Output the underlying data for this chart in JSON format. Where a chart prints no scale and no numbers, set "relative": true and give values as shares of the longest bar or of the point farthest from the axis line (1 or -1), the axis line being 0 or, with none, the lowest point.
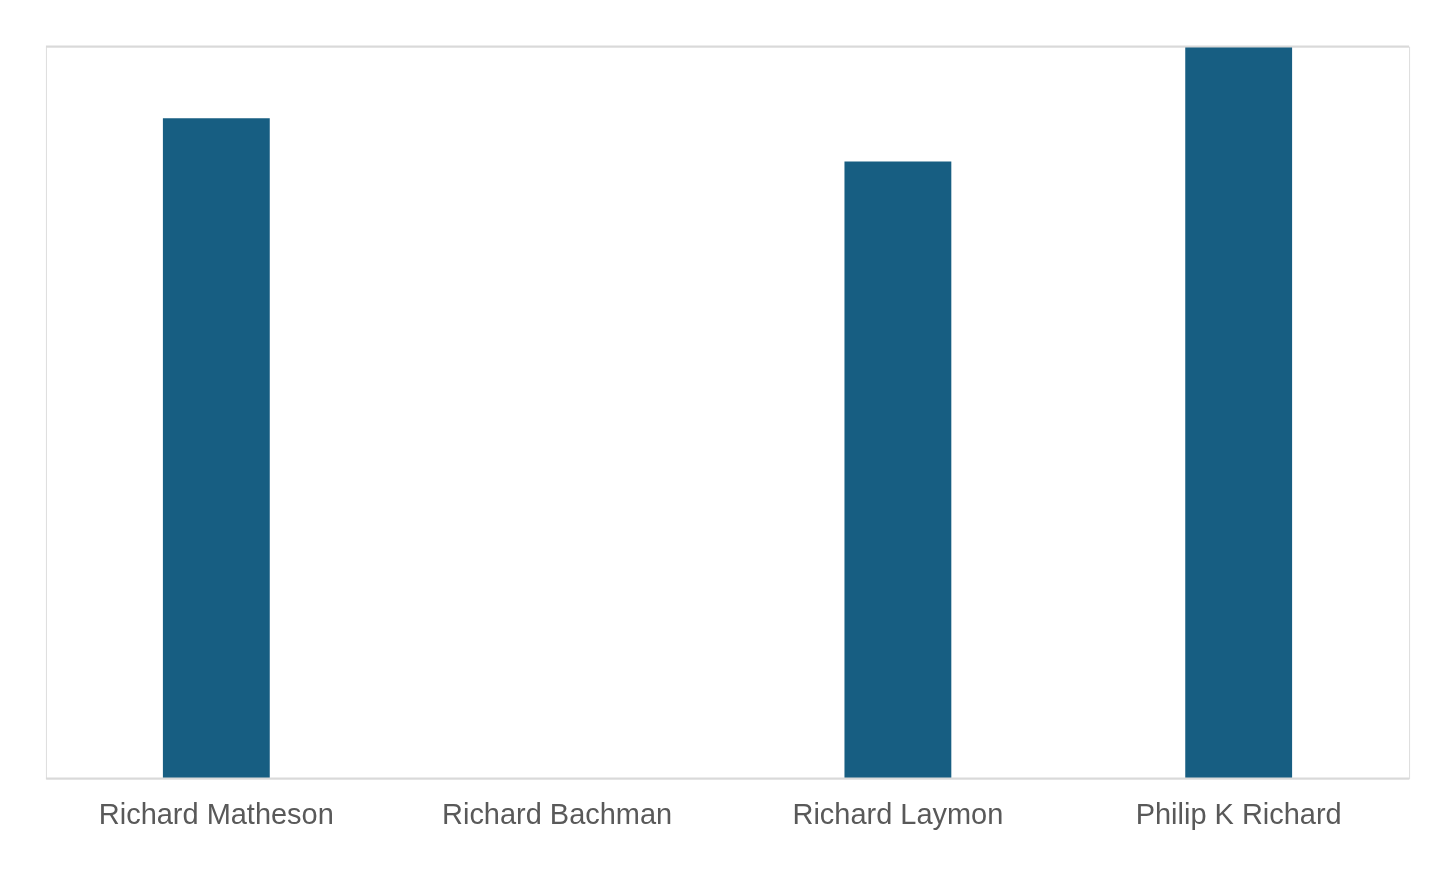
{
  "chart_data": {
    "type": "bar",
    "relative": true,
    "categories": [
      "Richard Matheson",
      "Richard Bachman",
      "Richard Laymon",
      "Philip K Richard"
    ],
    "values": [
      0.902,
      0,
      0.843,
      1
    ],
    "color": "#175e82",
    "legend": false
  }
}
